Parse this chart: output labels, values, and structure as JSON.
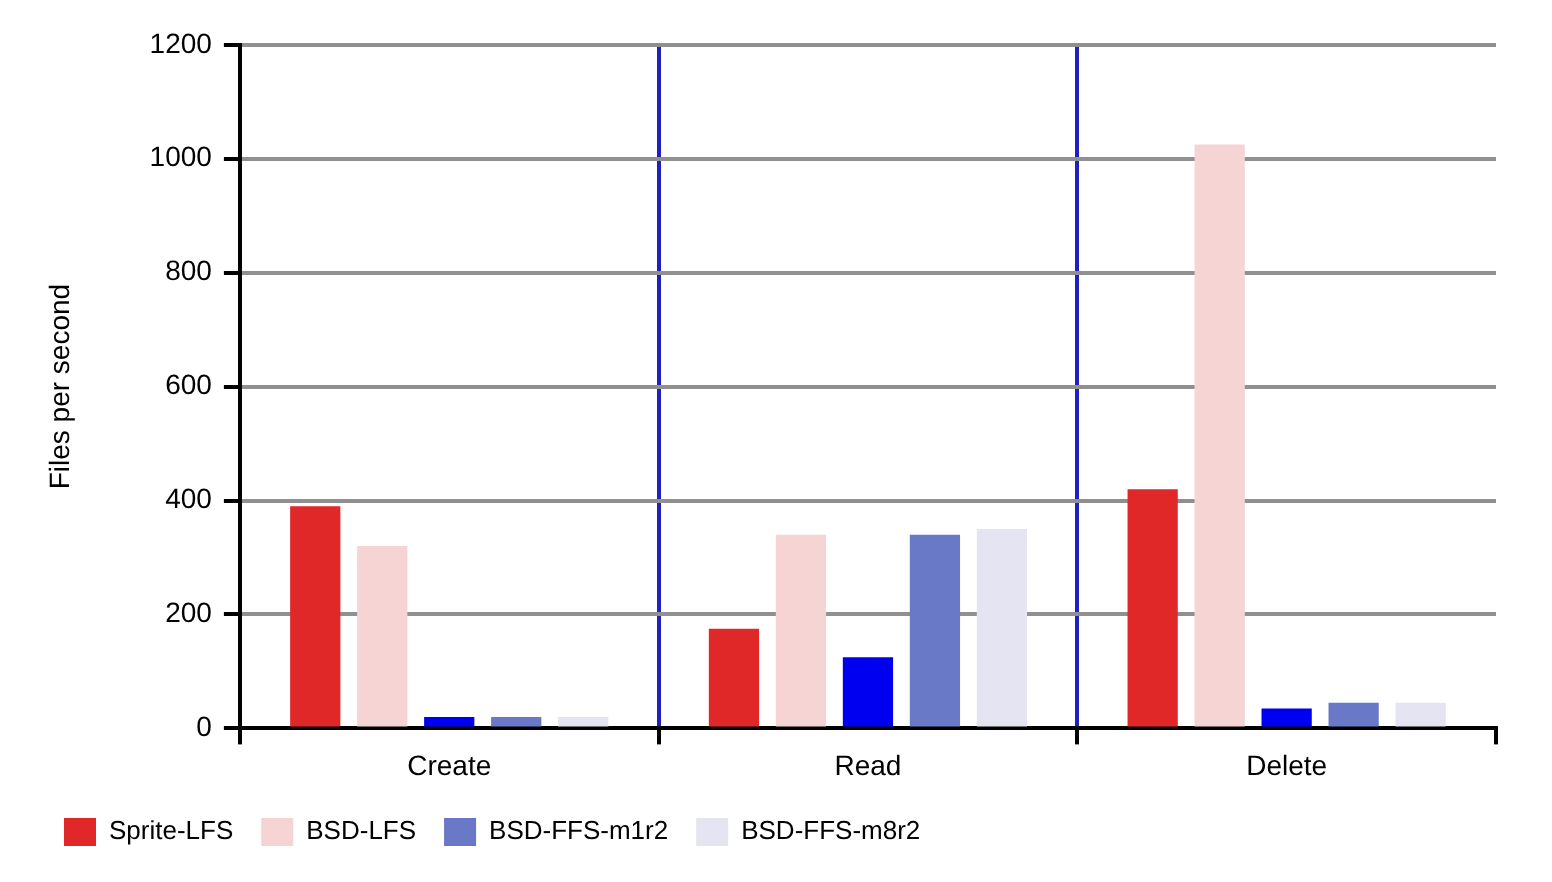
{
  "chart_data": {
    "type": "bar",
    "ylabel": "Files per second",
    "categories": [
      "Create",
      "Read",
      "Delete"
    ],
    "series": [
      {
        "name": "Sprite-LFS",
        "color": "#e02828",
        "values": [
          390,
          175,
          420
        ]
      },
      {
        "name": "BSD-LFS",
        "color": "#f6d4d4",
        "values": [
          320,
          340,
          1025
        ]
      },
      {
        "color": "#0000f0",
        "values": [
          20,
          125,
          35
        ]
      },
      {
        "name": "BSD-FFS-m1r2",
        "color": "#6a78c8",
        "values": [
          20,
          340,
          45
        ]
      },
      {
        "name": "BSD-FFS-m8r2",
        "color": "#e4e4f2",
        "values": [
          20,
          350,
          45
        ]
      }
    ],
    "ylim": [
      0,
      1200
    ],
    "yticks": [
      0,
      200,
      400,
      600,
      800,
      1000,
      1200
    ],
    "grid": true,
    "legend": "bottom"
  }
}
